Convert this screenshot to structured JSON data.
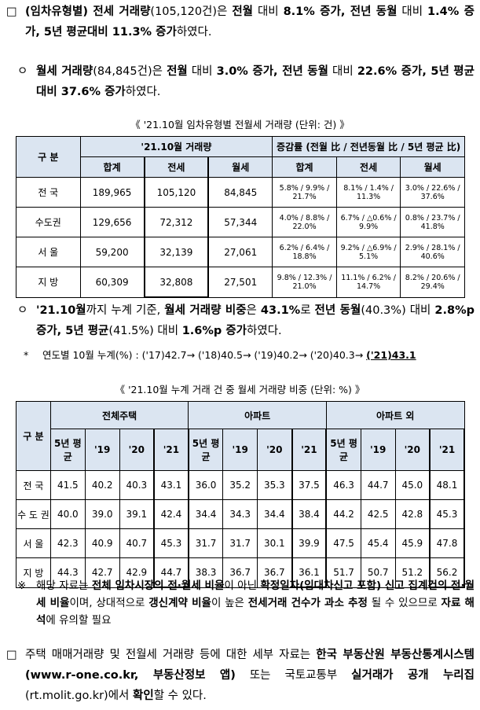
{
  "paragraph_1": {
    "bullet": "□",
    "segments": [
      {
        "text": "(임차유형별) 전세 거래량",
        "bold": true
      },
      {
        "text": "(105,120건)은 ",
        "bold": false
      },
      {
        "text": "전월",
        "bold": true
      },
      {
        "text": " 대비 ",
        "bold": false
      },
      {
        "text": "8.1% 증가, 전년 동월",
        "bold": true
      },
      {
        "text": " 대비 ",
        "bold": false
      },
      {
        "text": "1.4% 증가, 5년 평균대비 11.3% 증가",
        "bold": true
      },
      {
        "text": "하였다.",
        "bold": false
      }
    ]
  },
  "paragraph_2": {
    "bullet": "ㅇ",
    "segments": [
      {
        "text": "월세 거래량",
        "bold": true
      },
      {
        "text": "(84,845건)은 ",
        "bold": false
      },
      {
        "text": "전월",
        "bold": true
      },
      {
        "text": " 대비 ",
        "bold": false
      },
      {
        "text": "3.0% 증가, 전년 동월",
        "bold": true
      },
      {
        "text": " 대비 ",
        "bold": false
      },
      {
        "text": "22.6% 증가, 5년 평균 대비 37.6% 증가",
        "bold": true
      },
      {
        "text": "하였다.",
        "bold": false
      }
    ]
  },
  "table_1": {
    "title": "《 '21.10월 임차유형별 전월세 거래량 (단위: 건) 》",
    "header_top": [
      "구 분",
      "'21.10월 거래량",
      "증감률 (전월 比 / 전년동월 比 / 5년 평균 比)"
    ],
    "header_sub": [
      "합계",
      "전세",
      "월세",
      "합계",
      "전세",
      "월세"
    ],
    "rows": [
      [
        "전 국",
        "189,965",
        "105,120",
        "84,845",
        "5.8% / 9.9% / 21.7%",
        "8.1% / 1.4% / 11.3%",
        "3.0% / 22.6% / 37.6%"
      ],
      [
        "수도권",
        "129,656",
        "72,312",
        "57,344",
        "4.0% / 8.8% / 22.0%",
        "6.7% / △0.6% / 9.9%",
        "0.8% / 23.7% / 41.8%"
      ],
      [
        "서 울",
        "59,200",
        "32,139",
        "27,061",
        "6.2% / 6.4% / 18.8%",
        "9.2% / △6.9% / 5.1%",
        "2.9% / 28.1% / 40.6%"
      ],
      [
        "지 방",
        "60,309",
        "32,808",
        "27,501",
        "9.8% / 12.3% / 21.0%",
        "11.1% / 6.2% / 14.7%",
        "8.2% / 20.6% / 29.4%"
      ]
    ]
  },
  "paragraph_3": {
    "bullet": "ㅇ",
    "segments": [
      {
        "text": "'21.10월",
        "bold": true
      },
      {
        "text": "까지 누계 기준, ",
        "bold": false
      },
      {
        "text": "월세 거래량 비중",
        "bold": true
      },
      {
        "text": "은 ",
        "bold": false
      },
      {
        "text": "43.1%",
        "bold": true
      },
      {
        "text": "로 ",
        "bold": false
      },
      {
        "text": "전년 동월",
        "bold": true
      },
      {
        "text": "(40.3%) 대비 ",
        "bold": false
      },
      {
        "text": "2.8%p 증가, 5년 평균",
        "bold": true
      },
      {
        "text": "(41.5%) 대비 ",
        "bold": false
      },
      {
        "text": "1.6%p 증가",
        "bold": true
      },
      {
        "text": "하였다.",
        "bold": false
      }
    ]
  },
  "footnote": {
    "bullet": "*",
    "segments": [
      {
        "text": "연도별 10월 누계(%) : ('17)42.7→ ('18)40.5→ ('19)40.2→ ('20)40.3→ ",
        "bold": false
      },
      {
        "text": "('21)43.1",
        "bold": true,
        "underline": true
      }
    ]
  },
  "table_2": {
    "title": "《 '21.10월 누계 거래 건 중 월세 거래량 비중 (단위: %) 》",
    "header_top": [
      "구 분",
      "전체주택",
      "아파트",
      "아파트 외"
    ],
    "header_sub": [
      "5년 평균",
      "'19",
      "'20",
      "'21",
      "5년 평균",
      "'19",
      "'20",
      "'21",
      "5년 평균",
      "'19",
      "'20",
      "'21"
    ],
    "rows": [
      [
        "전 국",
        "41.5",
        "40.2",
        "40.3",
        "43.1",
        "36.0",
        "35.2",
        "35.3",
        "37.5",
        "46.3",
        "44.7",
        "45.0",
        "48.1"
      ],
      [
        "수 도 권",
        "40.0",
        "39.0",
        "39.1",
        "42.4",
        "34.4",
        "34.3",
        "34.4",
        "38.4",
        "44.2",
        "42.5",
        "42.8",
        "45.3"
      ],
      [
        "서 울",
        "42.3",
        "40.9",
        "40.7",
        "45.3",
        "31.7",
        "31.7",
        "30.1",
        "39.9",
        "47.5",
        "45.4",
        "45.9",
        "47.8"
      ],
      [
        "지 방",
        "44.3",
        "42.7",
        "42.9",
        "44.7",
        "38.3",
        "36.7",
        "36.7",
        "36.1",
        "51.7",
        "50.7",
        "51.2",
        "56.2"
      ]
    ]
  },
  "note": {
    "bullet": "※",
    "segments": [
      {
        "text": "해당 자료는 ",
        "bold": false
      },
      {
        "text": "전체 임차시장의 전·월세 비율",
        "bold": true
      },
      {
        "text": "이 아닌 ",
        "bold": false
      },
      {
        "text": "확정일자(임대차신고 포함) 신고 집계건의 전·월세 비율",
        "bold": true
      },
      {
        "text": "이며, 상대적으로 ",
        "bold": false
      },
      {
        "text": "갱신계약 비율",
        "bold": true
      },
      {
        "text": "이 높은 ",
        "bold": false
      },
      {
        "text": "전세거래 건수가 과소 추정",
        "bold": true
      },
      {
        "text": " 될 수 있으므로 ",
        "bold": false
      },
      {
        "text": "자료 해석",
        "bold": true
      },
      {
        "text": "에 유의할 필요",
        "bold": false
      }
    ]
  },
  "paragraph_4": {
    "bullet": "□",
    "segments": [
      {
        "text": "주택 매매거래량 및 전월세 거래량 등에 대한 세부 자료는 ",
        "bold": false
      },
      {
        "text": "한국 부동산원 부동산통계시스템(www.r-one.co.kr, 부동산정보 앱)",
        "bold": true
      },
      {
        "text": " 또는 국토교통부 ",
        "bold": false
      },
      {
        "text": "실거래가 공개 누리집",
        "bold": true
      },
      {
        "text": "(rt.molit.go.kr)에서 ",
        "bold": false
      },
      {
        "text": "확인",
        "bold": true
      },
      {
        "text": "할 수 있다.",
        "bold": false
      }
    ]
  }
}
